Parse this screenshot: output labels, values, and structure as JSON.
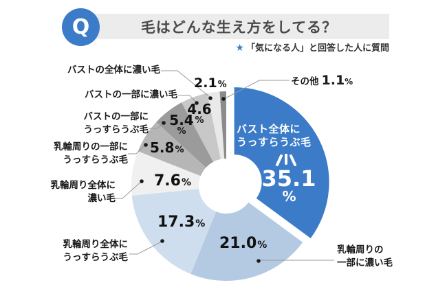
{
  "header": {
    "q_label": "Q",
    "title": "毛はどんな生え方をしてる？",
    "note_star": "★",
    "note": "「気になる人」と回答した人に質問"
  },
  "colors": {
    "accent_blue": "#3b7bc8",
    "title_bar_gray": "#ececec",
    "leader_line": "#9a9a9a",
    "dot": "#1a1a1a"
  },
  "chart_data": {
    "type": "pie",
    "variant": "donut",
    "title": "毛はどんな生え方をしてる？",
    "subtitle": "「気になる人」と回答した人に質問",
    "unit": "%",
    "start_angle_deg": 0,
    "direction": "clockwise",
    "legend_position": "callouts",
    "slices": [
      {
        "label": "バスト全体にうっすらうぶ毛",
        "callout": "バスト全体に\nうっすらうぶ毛",
        "value": 35.1,
        "display": "35.1",
        "color": "#3b7bc8",
        "exploded": true,
        "highlighted": true
      },
      {
        "label": "乳輪周りの一部に濃い毛",
        "callout": "乳輪周りの\n一部に濃い毛",
        "value": 21.0,
        "display": "21.0",
        "color": "#b4cae3",
        "exploded": false
      },
      {
        "label": "乳輪周り全体にうっすらうぶ毛",
        "callout": "乳輪周り全体に\nうっすらうぶ毛",
        "value": 17.3,
        "display": "17.3",
        "color": "#cfdeee",
        "exploded": false
      },
      {
        "label": "乳輪周り全体に濃い毛",
        "callout": "乳輪周り全体に\n濃い毛",
        "value": 7.6,
        "display": "7.6",
        "color": "#f0f0f0",
        "exploded": false
      },
      {
        "label": "乳輪周りの一部にうっすらうぶ毛",
        "callout": "乳輪周りの一部に\nうっすらうぶ毛",
        "value": 5.8,
        "display": "5.8",
        "color": "#b6b6b6",
        "exploded": false
      },
      {
        "label": "バストの一部にうっすらうぶ毛",
        "callout": "バストの一部に\nうっすらうぶ毛",
        "value": 5.4,
        "display": "5.4",
        "color": "#9b9b9b",
        "exploded": false
      },
      {
        "label": "バストの一部に濃い毛",
        "callout": "バストの一部に濃い毛",
        "value": 4.6,
        "display": "4.6",
        "color": "#c8c8c8",
        "exploded": false
      },
      {
        "label": "バストの全体に濃い毛",
        "callout": "バストの全体に濃い毛",
        "value": 2.1,
        "display": "2.1",
        "color": "#e9e9e9",
        "exploded": false
      },
      {
        "label": "その他",
        "callout": "その他",
        "value": 1.1,
        "display": "1.1",
        "color": "#8b8b8b",
        "exploded": false
      }
    ]
  }
}
